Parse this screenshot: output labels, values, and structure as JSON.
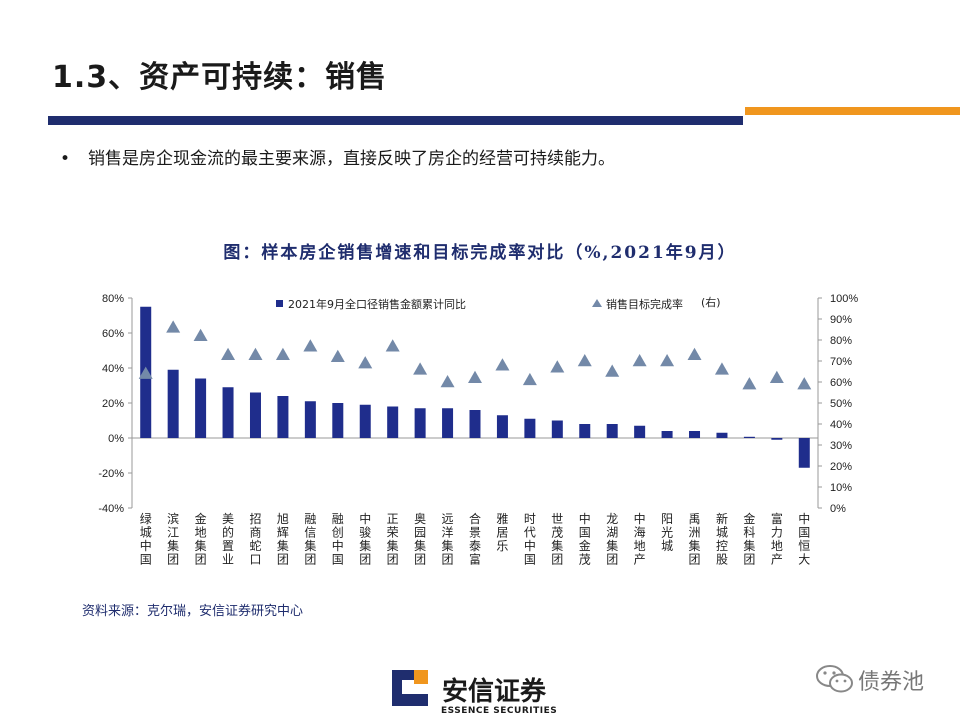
{
  "header": {
    "title": "1.3、资产可持续：销售",
    "bullet_symbol": "•",
    "bullet_text": "销售是房企现金流的最主要来源，直接反映了房企的经营可持续能力。"
  },
  "chart_data": {
    "type": "bar+scatter",
    "title": "图：样本房企销售增速和目标完成率对比（%,2021年9月）",
    "categories": [
      "绿城中国",
      "滨江集团",
      "金地集团",
      "美的置业",
      "招商蛇口",
      "旭辉集团",
      "融信集团",
      "融创中国",
      "中骏集团",
      "正荣集团",
      "奥园集团",
      "远洋集团",
      "合景泰富",
      "雅居乐",
      "时代中国",
      "世茂集团",
      "中国金茂",
      "龙湖集团",
      "中海地产",
      "阳光城",
      "禹洲集团",
      "新城控股",
      "金科集团",
      "富力地产",
      "中国恒大"
    ],
    "series": [
      {
        "name": "2021年9月全口径销售金额累计同比",
        "type": "bar",
        "axis": "left",
        "color": "#1f2d8c",
        "values": [
          75,
          39,
          34,
          29,
          26,
          24,
          21,
          20,
          19,
          18,
          17,
          17,
          16,
          13,
          11,
          10,
          8,
          8,
          7,
          4,
          4,
          3,
          0,
          -1,
          -17
        ]
      },
      {
        "name": "销售目标完成率",
        "name_suffix": "(右)",
        "type": "scatter",
        "axis": "right",
        "color": "#7389a8",
        "values": [
          64,
          86,
          82,
          73,
          73,
          73,
          77,
          72,
          69,
          77,
          66,
          60,
          62,
          68,
          61,
          67,
          70,
          65,
          70,
          70,
          73,
          66,
          59,
          62,
          59
        ]
      }
    ],
    "y_left": {
      "min": -40,
      "max": 80,
      "step": 20,
      "ticks": [
        "80%",
        "60%",
        "40%",
        "20%",
        "0%",
        "-20%",
        "-40%"
      ]
    },
    "y_right": {
      "min": 0,
      "max": 100,
      "step": 10,
      "ticks": [
        "100%",
        "90%",
        "80%",
        "70%",
        "60%",
        "50%",
        "40%",
        "30%",
        "20%",
        "10%",
        "0%"
      ]
    },
    "legend_position": "top"
  },
  "footer": {
    "source": "资料来源：克尔瑞，安信证券研究中心",
    "logo_cn": "安信证券",
    "logo_en": "ESSENCE SECURITIES",
    "watermark": "债券池"
  },
  "colors": {
    "navy": "#1f2d6e",
    "orange": "#f0961e",
    "bar": "#1f2d8c",
    "marker": "#7389a8"
  }
}
